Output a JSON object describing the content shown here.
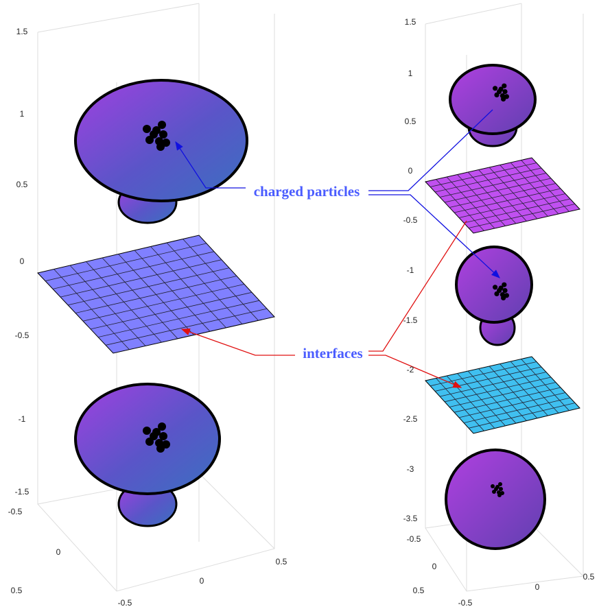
{
  "left_panel": {
    "z_ticks": [
      "1.5",
      "1",
      "0.5",
      "0",
      "-0.5",
      "-1",
      "-1.5"
    ],
    "x_ticks": [
      "-0.5",
      "0",
      "0.5"
    ],
    "y_ticks": [
      "-0.5",
      "0",
      "0.5"
    ]
  },
  "right_panel": {
    "z_ticks": [
      "1.5",
      "1",
      "0.5",
      "0",
      "-0.5",
      "-1",
      "-1.5",
      "-2",
      "-2.5",
      "-3",
      "-3.5"
    ],
    "x_ticks": [
      "-0.5",
      "0",
      "0.5"
    ],
    "y_ticks": [
      "-0.5",
      "0",
      "0.5"
    ]
  },
  "annotations": {
    "particles": "charged particles",
    "interfaces": "interfaces"
  }
}
